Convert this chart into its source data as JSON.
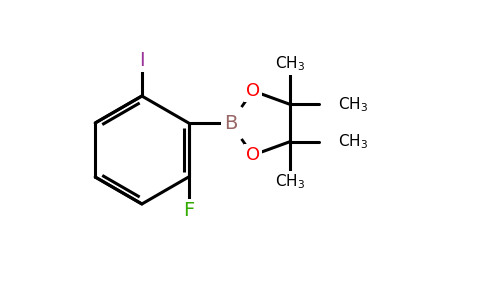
{
  "bg_color": "#FFFFFF",
  "bond_color": "#000000",
  "bond_width": 2.2,
  "atom_colors": {
    "B": "#996666",
    "O": "#FF0000",
    "F": "#33AA00",
    "I": "#993399",
    "C": "#000000"
  },
  "font_size_main": 13,
  "figsize": [
    4.84,
    3.0
  ],
  "dpi": 100
}
